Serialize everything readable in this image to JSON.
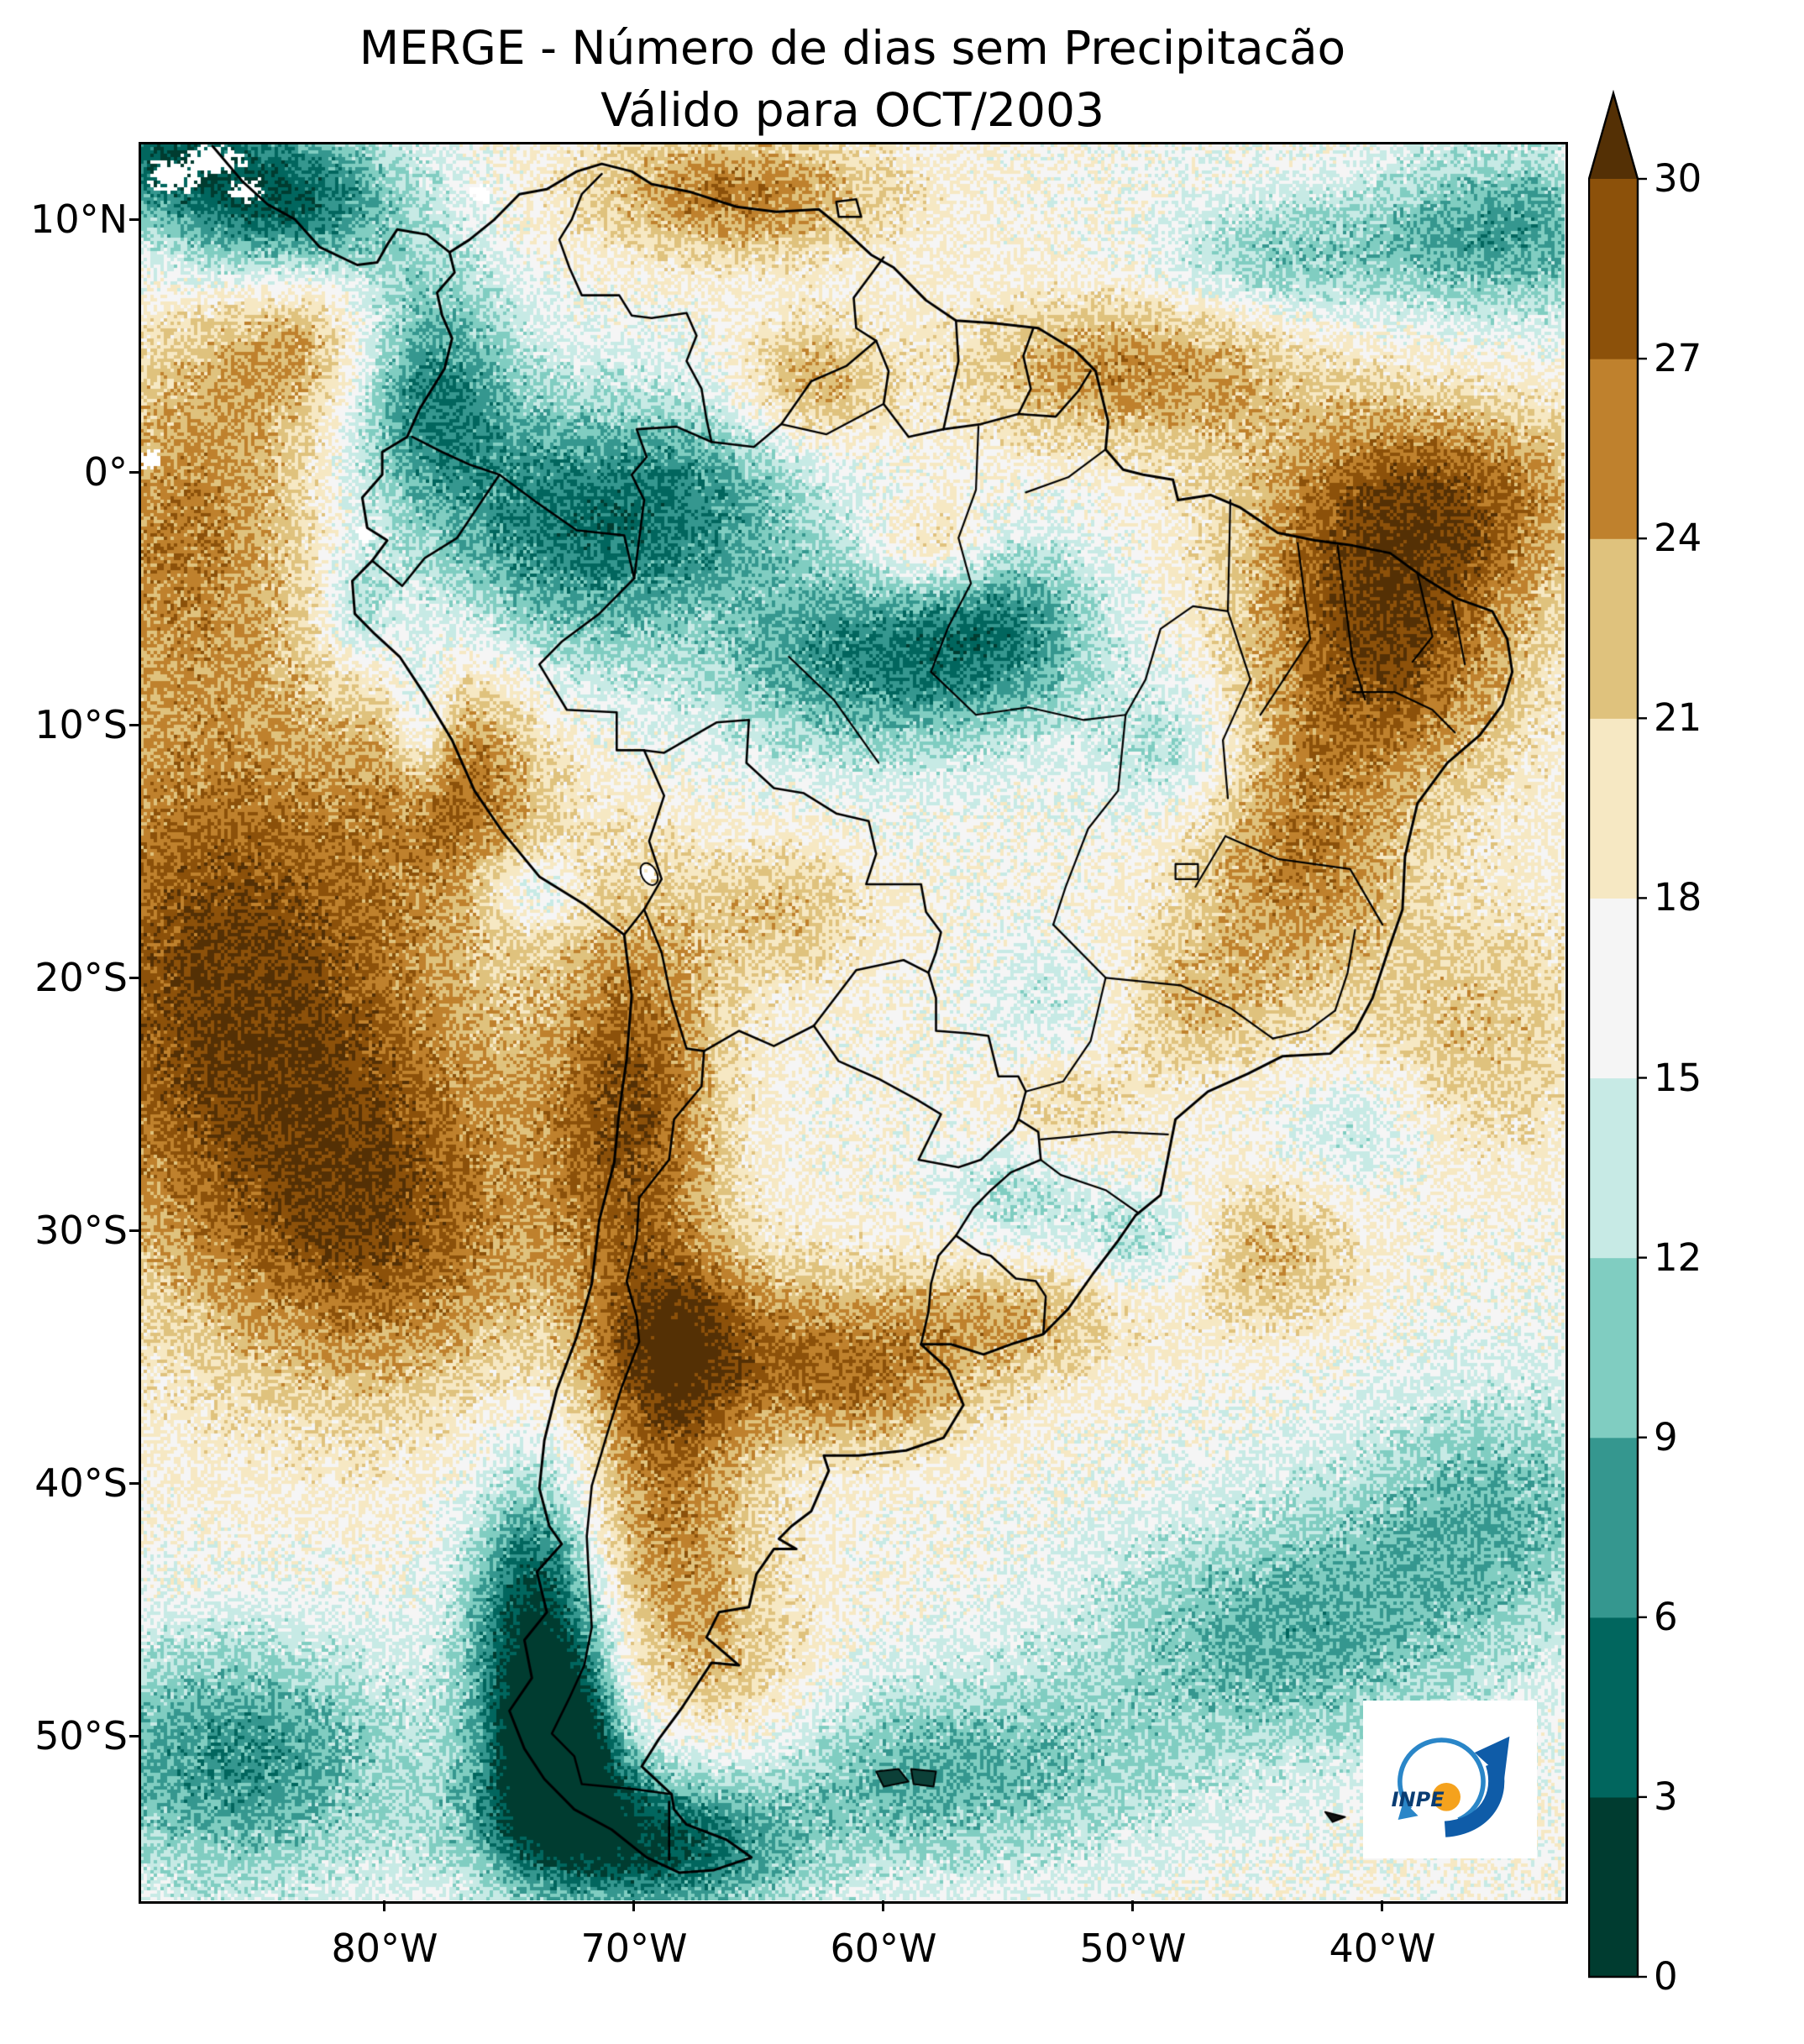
{
  "title": {
    "line1": "MERGE - Número de dias sem Precipitacão",
    "line2": "Válido para OCT/2003"
  },
  "axes": {
    "lat_ticks": [
      "10°N",
      "0°",
      "10°S",
      "20°S",
      "30°S",
      "40°S",
      "50°S"
    ],
    "lon_ticks": [
      "80°W",
      "70°W",
      "60°W",
      "50°W",
      "40°W"
    ]
  },
  "colorbar": {
    "ticks": [
      0,
      3,
      6,
      9,
      12,
      15,
      18,
      21,
      24,
      27,
      30
    ],
    "tick_labels": [
      "30",
      "27",
      "24",
      "21",
      "18",
      "15",
      "12",
      "9",
      "6",
      "3",
      "0"
    ],
    "bin_colors": [
      "#003c30",
      "#01665e",
      "#35978f",
      "#80cdc1",
      "#c7eae5",
      "#f5f5f5",
      "#f6e8c3",
      "#dfc27d",
      "#bf812d",
      "#8c510a"
    ],
    "over_color": "#543005",
    "extend": "max"
  },
  "logo": {
    "label": "INPE"
  },
  "chart_data": {
    "type": "heatmap",
    "title": "MERGE - Número de dias sem Precipitacão",
    "subtitle": "Válido para OCT/2003",
    "variable": "número de dias sem precipitação",
    "units": "dias",
    "region": "América do Sul",
    "value_range": [
      0,
      30
    ],
    "bin_size": 3,
    "colormap": "BrBG reversed (teal = poucos dias sem chuva, marrom = muitos dias sem chuva)",
    "legend_position": "right",
    "grid": false,
    "extent": {
      "lon_min": -89.8,
      "lon_max": -32.7,
      "lat_min": -56.5,
      "lat_max": 13.0
    },
    "lat_tick_values": [
      10,
      0,
      -10,
      -20,
      -30,
      -40,
      -50
    ],
    "lon_tick_values": [
      -80,
      -70,
      -60,
      -50,
      -40
    ],
    "field_base": 17,
    "field_sources": [
      [
        -84.5,
        10.8,
        5.0,
        3.2,
        -14
      ],
      [
        -89.0,
        12.5,
        3.0,
        2.0,
        -9
      ],
      [
        -78.5,
        3.5,
        3.5,
        5.0,
        -11
      ],
      [
        -73.0,
        -2.5,
        5.5,
        5.5,
        -10
      ],
      [
        -67.0,
        -1.0,
        5.0,
        4.0,
        -7
      ],
      [
        -60.5,
        -7.5,
        6.5,
        4.0,
        -10
      ],
      [
        -55.0,
        -6.0,
        4.0,
        3.5,
        -7
      ],
      [
        -35.0,
        9.5,
        5.5,
        3.5,
        -9
      ],
      [
        -44.0,
        8.5,
        5.0,
        2.5,
        -6
      ],
      [
        -81.0,
        -5.5,
        1.5,
        2.5,
        -6
      ],
      [
        -78.5,
        -10.0,
        1.3,
        3.0,
        -8
      ],
      [
        -74.0,
        -16.5,
        2.0,
        1.5,
        -6
      ],
      [
        -73.8,
        -46.0,
        2.8,
        6.5,
        -17
      ],
      [
        -73.0,
        -50.5,
        2.0,
        3.0,
        -14
      ],
      [
        -72.0,
        -53.5,
        5.0,
        3.0,
        -10
      ],
      [
        -68.0,
        -54.8,
        5.0,
        2.5,
        -8
      ],
      [
        -86.0,
        -51.0,
        7.0,
        5.0,
        -10
      ],
      [
        -58.0,
        -51.5,
        9.0,
        4.0,
        -8
      ],
      [
        -44.0,
        -46.0,
        8.0,
        5.0,
        -8
      ],
      [
        -35.5,
        -41.0,
        6.0,
        5.0,
        -7
      ],
      [
        -54.5,
        -28.5,
        3.0,
        2.5,
        -5
      ],
      [
        -49.5,
        -30.5,
        2.5,
        2.0,
        -5
      ],
      [
        -48.5,
        -11.0,
        3.0,
        3.0,
        -5
      ],
      [
        -53.0,
        -21.0,
        3.0,
        2.5,
        -4
      ],
      [
        -41.0,
        -26.0,
        3.0,
        2.5,
        -4
      ],
      [
        -86.0,
        -20.0,
        9.0,
        11.0,
        13
      ],
      [
        -80.0,
        -30.0,
        7.0,
        7.0,
        9
      ],
      [
        -88.0,
        -2.0,
        5.0,
        7.0,
        8
      ],
      [
        -83.0,
        5.0,
        4.0,
        3.5,
        7
      ],
      [
        -77.0,
        -12.0,
        3.5,
        4.5,
        8
      ],
      [
        -70.0,
        -25.0,
        3.5,
        8.0,
        11
      ],
      [
        -68.5,
        -35.0,
        3.0,
        4.0,
        9
      ],
      [
        -64.0,
        -34.5,
        6.0,
        3.5,
        7
      ],
      [
        -69.0,
        -42.0,
        4.0,
        5.0,
        8
      ],
      [
        -66.0,
        -48.0,
        4.0,
        4.0,
        5
      ],
      [
        -40.0,
        -7.0,
        5.5,
        5.5,
        12
      ],
      [
        -43.5,
        -15.5,
        4.5,
        5.0,
        8
      ],
      [
        -38.0,
        -1.0,
        7.0,
        4.0,
        10
      ],
      [
        -50.0,
        4.0,
        7.0,
        3.0,
        8
      ],
      [
        -66.0,
        11.0,
        6.0,
        2.5,
        9
      ],
      [
        -63.0,
        3.5,
        3.0,
        2.5,
        7
      ],
      [
        -58.0,
        -3.0,
        2.5,
        2.0,
        6
      ],
      [
        -48.0,
        -21.0,
        4.0,
        3.0,
        5
      ],
      [
        -55.0,
        -33.5,
        5.0,
        2.5,
        6
      ],
      [
        -44.5,
        -31.0,
        3.5,
        3.0,
        6
      ],
      [
        -36.0,
        -22.0,
        5.0,
        5.0,
        5
      ],
      [
        -53.0,
        -25.5,
        3.0,
        2.5,
        4
      ],
      [
        -64.0,
        -17.5,
        3.5,
        3.0,
        5
      ],
      [
        -60.5,
        -36.5,
        4.5,
        2.5,
        5
      ]
    ],
    "no_data_spots": [
      [
        -88.5,
        11.8,
        1.3,
        0.8
      ],
      [
        -87.0,
        12.4,
        1.6,
        0.7
      ],
      [
        -85.6,
        11.2,
        0.8,
        0.6
      ],
      [
        -76.2,
        11.1,
        0.6,
        0.5
      ],
      [
        -80.8,
        -2.4,
        0.5,
        0.4
      ],
      [
        -69.5,
        -15.9,
        0.6,
        0.45
      ],
      [
        -89.4,
        0.5,
        0.7,
        0.5
      ]
    ]
  }
}
